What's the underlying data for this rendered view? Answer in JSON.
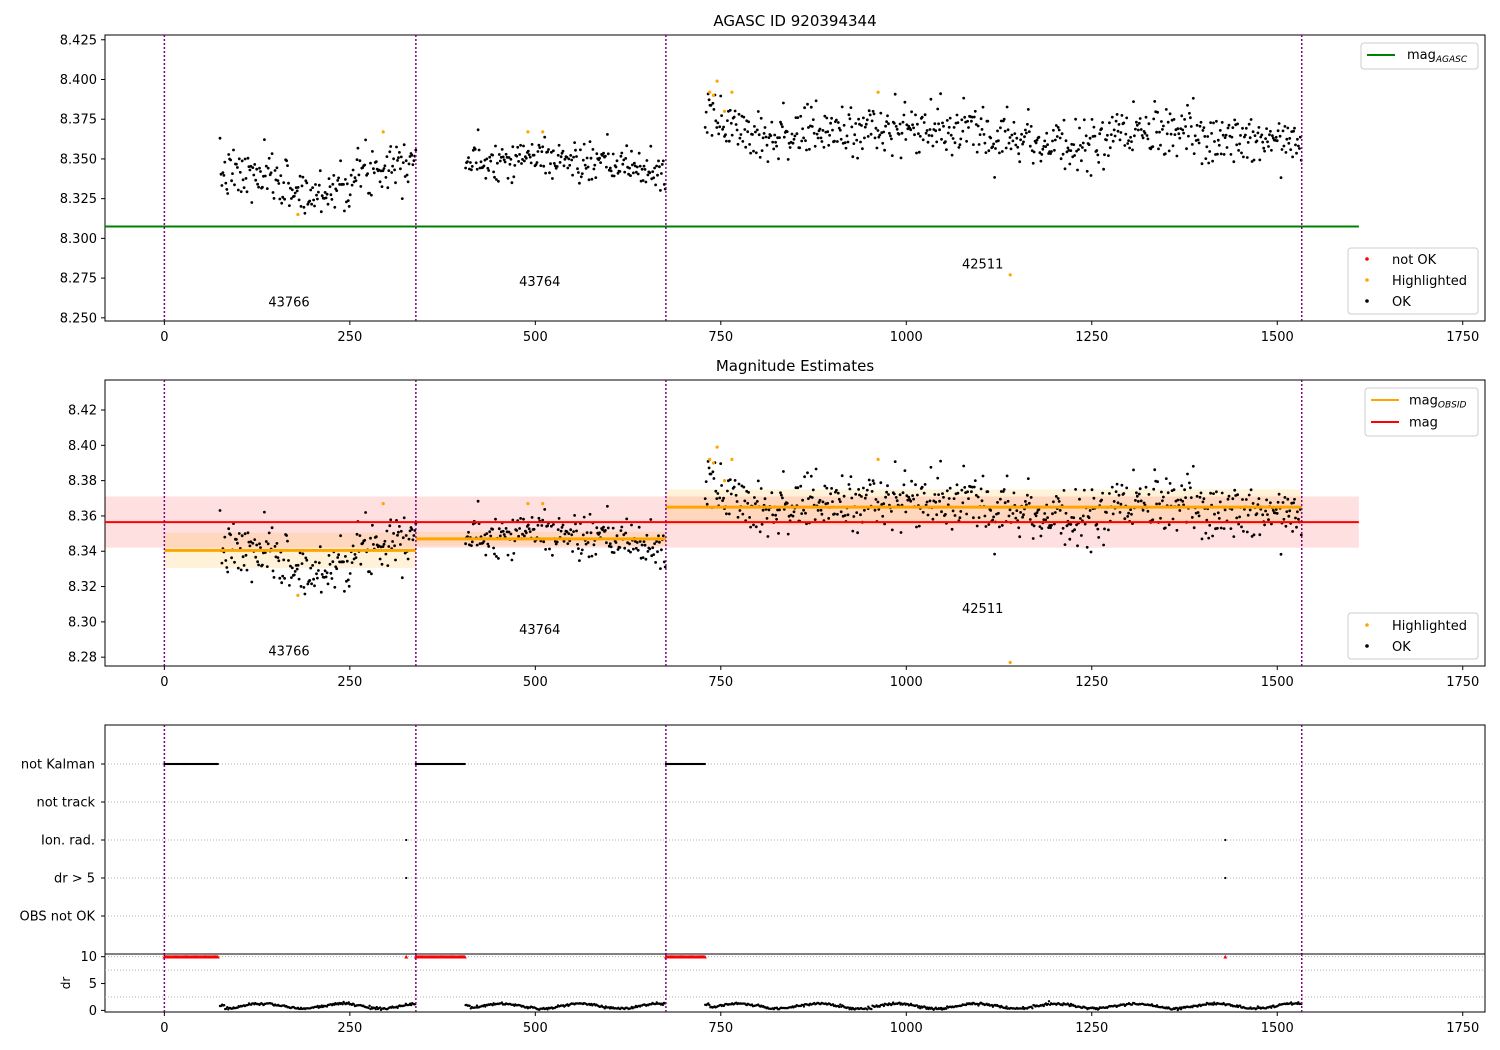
{
  "chart_data": [
    {
      "type": "scatter",
      "title": "AGASC ID 920394344",
      "xlim": [
        -80,
        1780
      ],
      "ylim": [
        8.248,
        8.428
      ],
      "x_ticks": [
        0,
        250,
        500,
        750,
        1000,
        1250,
        1500,
        1750
      ],
      "y_ticks": [
        8.25,
        8.275,
        8.3,
        8.325,
        8.35,
        8.375,
        8.4,
        8.425
      ],
      "y_tick_labels": [
        "8.250",
        "8.275",
        "8.300",
        "8.325",
        "8.350",
        "8.375",
        "8.400",
        "8.425"
      ],
      "obs_boundaries": [
        0,
        339,
        676,
        1533
      ],
      "obs_labels": [
        {
          "text": "43766",
          "x": 168,
          "y": 8.257
        },
        {
          "text": "43764",
          "x": 506,
          "y": 8.27
        },
        {
          "text": "42511",
          "x": 1103,
          "y": 8.281
        }
      ],
      "reference_lines": [
        {
          "name": "magAGASC",
          "y": 8.3075,
          "x": [
            -80,
            1610
          ],
          "color": "#008000"
        }
      ],
      "segments": [
        {
          "obsid": "43766",
          "x": [
            75,
            339
          ],
          "mean": 8.341,
          "std": 0.008,
          "drift": [
            [
              0,
              0
            ],
            [
              0.3,
              -0.004
            ],
            [
              0.45,
              -0.015
            ],
            [
              0.6,
              -0.008
            ],
            [
              0.75,
              0.002
            ],
            [
              0.9,
              0.008
            ],
            [
              1,
              0.012
            ]
          ]
        },
        {
          "obsid": "43764",
          "x": [
            406,
            676
          ],
          "mean": 8.346,
          "std": 0.006,
          "drift": [
            [
              0,
              0.002
            ],
            [
              0.35,
              0.006
            ],
            [
              0.6,
              0.001
            ],
            [
              0.85,
              -0.001
            ],
            [
              1,
              -0.006
            ]
          ]
        },
        {
          "obsid": "42511",
          "x": [
            729,
            1533
          ],
          "mean": 8.365,
          "std": 0.008,
          "drift": [
            [
              0,
              0.012
            ],
            [
              0.1,
              0
            ],
            [
              0.3,
              0.004
            ],
            [
              0.5,
              0.002
            ],
            [
              0.6,
              -0.008
            ],
            [
              0.75,
              0.002
            ],
            [
              0.9,
              -0.004
            ],
            [
              1,
              0
            ]
          ]
        }
      ],
      "highlighted_points": [
        [
          180,
          8.315
        ],
        [
          295,
          8.367
        ],
        [
          490,
          8.367
        ],
        [
          510,
          8.367
        ],
        [
          735,
          8.392
        ],
        [
          740,
          8.39
        ],
        [
          745,
          8.399
        ],
        [
          755,
          8.38
        ],
        [
          765,
          8.392
        ],
        [
          962,
          8.392
        ],
        [
          1140,
          8.277
        ]
      ],
      "legends": [
        {
          "position": "top-right",
          "entries": [
            {
              "label": "mag",
              "subscript": "AGASC",
              "color": "#008000",
              "kind": "line"
            }
          ]
        },
        {
          "position": "bottom-right",
          "entries": [
            {
              "label": "not OK",
              "color": "#ff0000",
              "kind": "point"
            },
            {
              "label": "Highlighted",
              "color": "#ffa500",
              "kind": "point"
            },
            {
              "label": "OK",
              "color": "#000000",
              "kind": "point"
            }
          ]
        }
      ]
    },
    {
      "type": "scatter",
      "title": "Magnitude Estimates",
      "xlim": [
        -80,
        1780
      ],
      "ylim": [
        8.275,
        8.437
      ],
      "x_ticks": [
        0,
        250,
        500,
        750,
        1000,
        1250,
        1500,
        1750
      ],
      "y_ticks": [
        8.28,
        8.3,
        8.32,
        8.34,
        8.36,
        8.38,
        8.4,
        8.42
      ],
      "y_tick_labels": [
        "8.28",
        "8.30",
        "8.32",
        "8.34",
        "8.36",
        "8.38",
        "8.40",
        "8.42"
      ],
      "obs_boundaries": [
        0,
        339,
        676,
        1533
      ],
      "obs_labels": [
        {
          "text": "43766",
          "x": 168,
          "y": 8.281
        },
        {
          "text": "43764",
          "x": 506,
          "y": 8.293
        },
        {
          "text": "42511",
          "x": 1103,
          "y": 8.305
        }
      ],
      "mag": {
        "value": 8.3565,
        "band": [
          8.342,
          8.371
        ],
        "x": [
          -80,
          1610
        ],
        "color": "#ff0000"
      },
      "mag_obsid": [
        {
          "obsid": "43766",
          "x": [
            0,
            339
          ],
          "value": 8.3405,
          "band": [
            8.3305,
            8.3505
          ]
        },
        {
          "obsid": "43764",
          "x": [
            339,
            676
          ],
          "value": 8.347,
          "band": [
            8.343,
            8.351
          ]
        },
        {
          "obsid": "42511",
          "x": [
            676,
            1533
          ],
          "value": 8.365,
          "band": [
            8.355,
            8.375
          ]
        }
      ],
      "legends": [
        {
          "position": "top-right",
          "entries": [
            {
              "label": "mag",
              "subscript": "OBSID",
              "color": "#ffa500",
              "kind": "line"
            },
            {
              "label": "mag",
              "subscript": "",
              "color": "#ff0000",
              "kind": "line"
            }
          ]
        },
        {
          "position": "bottom-right",
          "entries": [
            {
              "label": "Highlighted",
              "color": "#ffa500",
              "kind": "point"
            },
            {
              "label": "OK",
              "color": "#000000",
              "kind": "point"
            }
          ]
        }
      ]
    },
    {
      "type": "scatter",
      "title": "",
      "xlim": [
        -80,
        1780
      ],
      "flag_rows": [
        "not Kalman",
        "not track",
        "Ion. rad.",
        "dr > 5",
        "OBS not OK"
      ],
      "flag_points": {
        "not Kalman": [
          [
            0,
            73
          ],
          [
            339,
            406
          ],
          [
            676,
            729
          ]
        ],
        "not track": [],
        "Ion. rad.": [
          [
            326,
            326
          ],
          [
            1430,
            1430
          ]
        ],
        "dr > 5": [
          [
            326,
            326
          ],
          [
            1430,
            1430
          ]
        ],
        "OBS not OK": []
      },
      "obs_boundaries": [
        0,
        339,
        676,
        1533
      ]
    },
    {
      "type": "scatter",
      "title": "",
      "ylabel": "dr",
      "xlim": [
        -80,
        1780
      ],
      "ylim": [
        -0.3,
        10.5
      ],
      "x_ticks": [
        0,
        250,
        500,
        750,
        1000,
        1250,
        1500,
        1750
      ],
      "y_ticks": [
        0,
        5,
        10
      ],
      "y_tick_labels": [
        "0",
        "5",
        "10"
      ],
      "clipped_value": 10,
      "clipped_ranges": [
        [
          0,
          73
        ],
        [
          339,
          406
        ],
        [
          676,
          729
        ],
        [
          326,
          326
        ],
        [
          1430,
          1430
        ]
      ],
      "dr_ranges": [
        [
          75,
          339
        ],
        [
          406,
          676
        ],
        [
          729,
          1533
        ]
      ],
      "dr_level": 0.8,
      "obs_boundaries": [
        0,
        339,
        676,
        1533
      ]
    }
  ]
}
